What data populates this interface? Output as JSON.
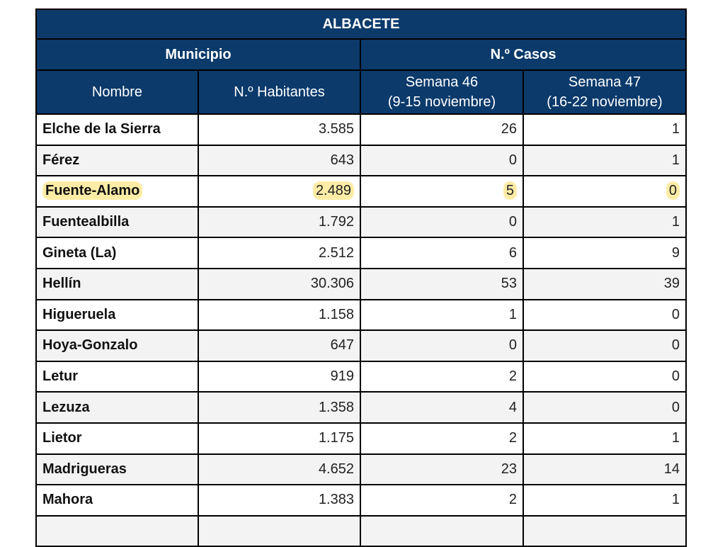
{
  "table": {
    "title": "ALBACETE",
    "groups": {
      "municipio": "Municipio",
      "casos": "N.º Casos"
    },
    "columns": {
      "nombre": "Nombre",
      "habitantes": "N.º Habitantes",
      "semana46_line1": "Semana 46",
      "semana46_line2": "(9-15 noviembre)",
      "semana47_line1": "Semana 47",
      "semana47_line2": "(16-22 noviembre)"
    },
    "highlight_color": "#fdeca6",
    "header_color": "#0b3a6b",
    "rows": [
      {
        "nombre": "Elche de la Sierra",
        "habitantes": "3.585",
        "s46": "26",
        "s47": "1"
      },
      {
        "nombre": "Férez",
        "habitantes": "643",
        "s46": "0",
        "s47": "1"
      },
      {
        "nombre": "Fuente-Alamo",
        "habitantes": "2.489",
        "s46": "5",
        "s47": "0",
        "highlighted": true
      },
      {
        "nombre": "Fuentealbilla",
        "habitantes": "1.792",
        "s46": "0",
        "s47": "1"
      },
      {
        "nombre": "Gineta (La)",
        "habitantes": "2.512",
        "s46": "6",
        "s47": "9"
      },
      {
        "nombre": "Hellín",
        "habitantes": "30.306",
        "s46": "53",
        "s47": "39"
      },
      {
        "nombre": "Higueruela",
        "habitantes": "1.158",
        "s46": "1",
        "s47": "0"
      },
      {
        "nombre": "Hoya-Gonzalo",
        "habitantes": "647",
        "s46": "0",
        "s47": "0"
      },
      {
        "nombre": "Letur",
        "habitantes": "919",
        "s46": "2",
        "s47": "0"
      },
      {
        "nombre": "Lezuza",
        "habitantes": "1.358",
        "s46": "4",
        "s47": "0"
      },
      {
        "nombre": "Lietor",
        "habitantes": "1.175",
        "s46": "2",
        "s47": "1"
      },
      {
        "nombre": "Madrigueras",
        "habitantes": "4.652",
        "s46": "23",
        "s47": "14"
      },
      {
        "nombre": "Mahora",
        "habitantes": "1.383",
        "s46": "2",
        "s47": "1"
      }
    ]
  }
}
